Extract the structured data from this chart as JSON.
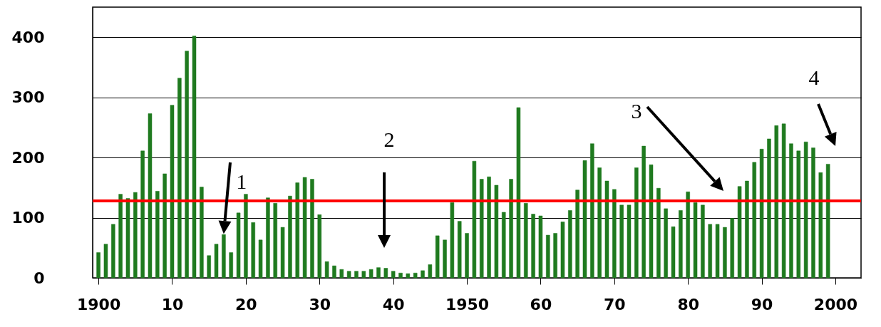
{
  "chart_data": {
    "type": "bar",
    "x": [
      1900,
      1901,
      1902,
      1903,
      1904,
      1905,
      1906,
      1907,
      1908,
      1909,
      1910,
      1911,
      1912,
      1913,
      1914,
      1915,
      1916,
      1917,
      1918,
      1919,
      1920,
      1921,
      1922,
      1923,
      1924,
      1925,
      1926,
      1927,
      1928,
      1929,
      1930,
      1931,
      1932,
      1933,
      1934,
      1935,
      1936,
      1937,
      1938,
      1939,
      1940,
      1941,
      1942,
      1943,
      1944,
      1945,
      1946,
      1947,
      1948,
      1949,
      1950,
      1951,
      1952,
      1953,
      1954,
      1955,
      1956,
      1957,
      1958,
      1959,
      1960,
      1961,
      1962,
      1963,
      1964,
      1965,
      1966,
      1967,
      1968,
      1969,
      1970,
      1971,
      1972,
      1973,
      1974,
      1975,
      1976,
      1977,
      1978,
      1979,
      1980,
      1981,
      1982,
      1983,
      1984,
      1985,
      1986,
      1987,
      1988,
      1989,
      1990,
      1991,
      1992,
      1993,
      1994,
      1995,
      1996,
      1997,
      1998,
      1999
    ],
    "values": [
      42,
      56,
      89,
      139,
      132,
      142,
      211,
      273,
      144,
      173,
      287,
      332,
      377,
      402,
      151,
      37,
      56,
      72,
      42,
      108,
      139,
      92,
      63,
      133,
      124,
      84,
      136,
      158,
      167,
      164,
      105,
      27,
      20,
      14,
      11,
      11,
      11,
      14,
      17,
      16,
      11,
      8,
      7,
      8,
      12,
      22,
      70,
      63,
      125,
      94,
      74,
      194,
      164,
      168,
      154,
      109,
      164,
      283,
      124,
      106,
      103,
      71,
      74,
      93,
      112,
      146,
      195,
      223,
      183,
      161,
      147,
      121,
      121,
      183,
      219,
      188,
      149,
      115,
      85,
      112,
      143,
      125,
      121,
      89,
      89,
      84,
      99,
      152,
      161,
      192,
      214,
      231,
      253,
      256,
      223,
      211,
      226,
      216,
      175,
      189
    ],
    "color": "#1f7a1f",
    "xlim": [
      1899.7,
      2003
    ],
    "xticks": [
      1900,
      {
        "value": 1910,
        "label": "10"
      },
      {
        "value": 1920,
        "label": "20"
      },
      {
        "value": 1930,
        "label": "30"
      },
      {
        "value": 1940,
        "label": "40"
      },
      1950,
      {
        "value": 1960,
        "label": "60"
      },
      {
        "value": 1970,
        "label": "70"
      },
      {
        "value": 1980,
        "label": "80"
      },
      {
        "value": 1990,
        "label": "90"
      },
      2000
    ],
    "ylim": [
      0,
      450
    ],
    "yticks": [
      0,
      100,
      200,
      300,
      400
    ],
    "grid": "y",
    "ref_lines": [
      {
        "axis": "y",
        "value": 128,
        "color": "#ff0000"
      }
    ],
    "annotations": [
      {
        "text": "1",
        "x": 1917,
        "y": 72
      },
      "2",
      "3",
      "4"
    ]
  }
}
